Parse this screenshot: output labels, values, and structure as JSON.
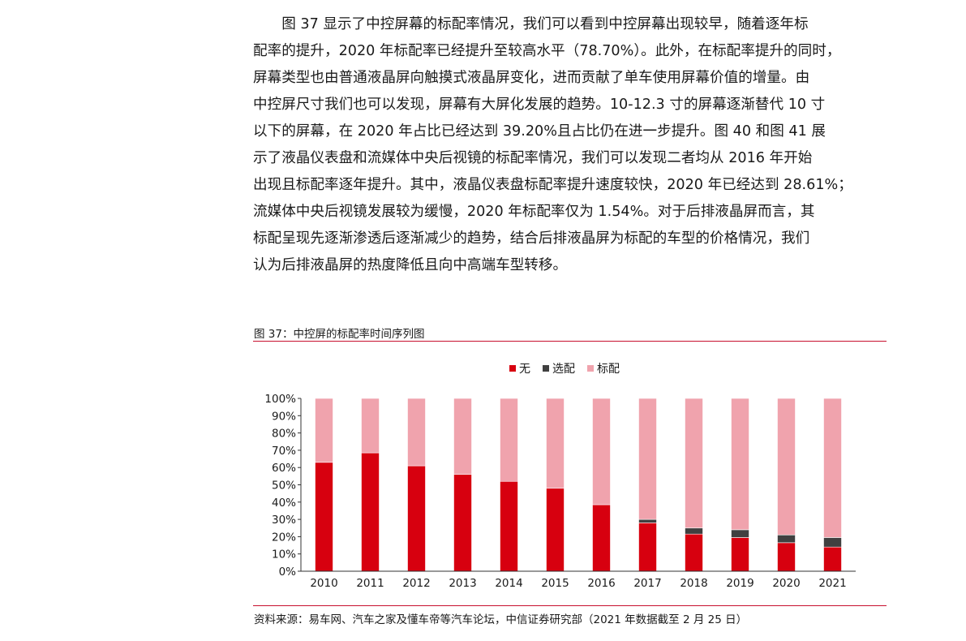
{
  "paragraph": {
    "lines": [
      "　　图 37 显示了中控屏幕的标配率情况，我们可以看到中控屏幕出现较早，随着逐年标",
      "配率的提升，2020 年标配率已经提升至较高水平（78.70%）。此外，在标配率提升的同时，",
      "屏幕类型也由普通液晶屏向触摸式液晶屏变化，进而贡献了单车使用屏幕价值的增量。由",
      "中控屏尺寸我们也可以发现，屏幕有大屏化发展的趋势。10-12.3 寸的屏幕逐渐替代 10 寸",
      "以下的屏幕，在 2020 年占比已经达到 39.20%且占比仍在进一步提升。图 40 和图 41 展",
      "示了液晶仪表盘和流媒体中央后视镜的标配率情况，我们可以发现二者均从 2016 年开始",
      "出现且标配率逐年提升。其中，液晶仪表盘标配率提升速度较快，2020 年已经达到 28.61%；",
      "流媒体中央后视镜发展较为缓慢，2020 年标配率仅为 1.54%。对于后排液晶屏而言，其",
      "标配呈现先逐渐渗透后逐渐减少的趋势，结合后排液晶屏为标配的车型的价格情况，我们",
      "认为后排液晶屏的热度降低且向中高端车型转移。"
    ]
  },
  "figure": {
    "title": "图 37：中控屏的标配率时间序列图",
    "source": "资料来源：易车网、汽车之家及懂车帝等汽车论坛，中信证券研究部（2021 年数据截至 2 月 25 日）"
  },
  "chart_data": {
    "type": "bar",
    "stacked": true,
    "categories": [
      "2010",
      "2011",
      "2012",
      "2013",
      "2014",
      "2015",
      "2016",
      "2017",
      "2018",
      "2019",
      "2020",
      "2021"
    ],
    "series": [
      {
        "name": "无",
        "color": "#d7000f",
        "values": [
          63,
          68.5,
          61,
          56,
          52,
          48,
          38.5,
          28,
          21.5,
          19.5,
          16.5,
          14
        ]
      },
      {
        "name": "选配",
        "color": "#404040",
        "values": [
          0,
          0,
          0,
          0,
          0,
          0,
          0,
          2,
          3.5,
          4.5,
          4.5,
          5.5
        ]
      },
      {
        "name": "标配",
        "color": "#f0a3ad",
        "values": [
          37,
          31.5,
          39,
          44,
          48,
          52,
          61.5,
          70,
          75,
          76,
          79,
          80.5
        ]
      }
    ],
    "yticks": [
      "0%",
      "10%",
      "20%",
      "30%",
      "40%",
      "50%",
      "60%",
      "70%",
      "80%",
      "90%",
      "100%"
    ],
    "ylim": [
      0,
      100
    ],
    "legend_position": "top-center",
    "grid": false
  }
}
